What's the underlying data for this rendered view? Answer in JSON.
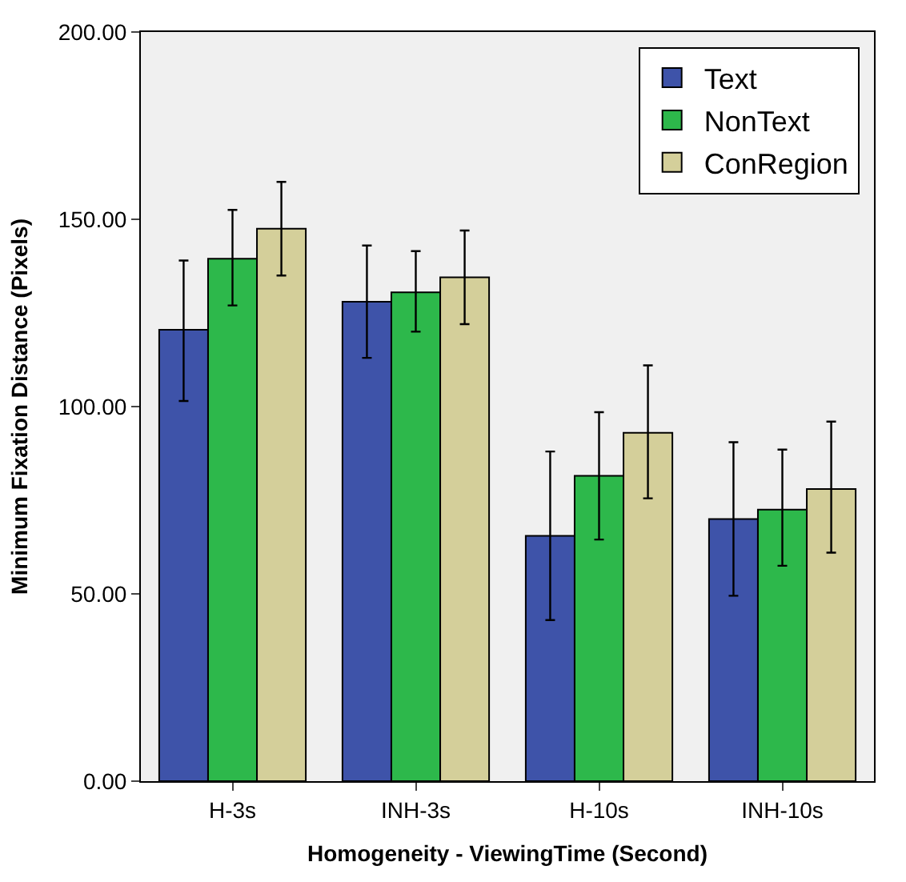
{
  "chart_data": {
    "type": "bar",
    "xlabel": "Homogeneity - ViewingTime (Second)",
    "ylabel": "Minimum Fixation Distance (Pixels)",
    "categories": [
      "H-3s",
      "INH-3s",
      "H-10s",
      "INH-10s"
    ],
    "series": [
      {
        "name": "Text",
        "color": "#3e53a9",
        "values": [
          120.5,
          128,
          65.5,
          70
        ],
        "errors": [
          [
            101.5,
            139
          ],
          [
            113,
            143
          ],
          [
            43,
            88
          ],
          [
            49.5,
            90.5
          ]
        ]
      },
      {
        "name": "NonText",
        "color": "#2db84b",
        "values": [
          139.5,
          130.5,
          81.5,
          72.5
        ],
        "errors": [
          [
            127,
            152.5
          ],
          [
            120,
            141.5
          ],
          [
            64.5,
            98.5
          ],
          [
            57.5,
            88.5
          ]
        ]
      },
      {
        "name": "ConRegion",
        "color": "#d4cf9a",
        "values": [
          147.5,
          134.5,
          93,
          78
        ],
        "errors": [
          [
            135,
            160
          ],
          [
            122,
            147
          ],
          [
            75.5,
            111
          ],
          [
            61,
            96
          ]
        ]
      }
    ],
    "ylim": [
      0,
      200
    ],
    "yticks": [
      {
        "value": 0,
        "label": "0.00"
      },
      {
        "value": 50,
        "label": "50.00"
      },
      {
        "value": 100,
        "label": "100.00"
      },
      {
        "value": 150,
        "label": "150.00"
      },
      {
        "value": 200,
        "label": "200.00"
      }
    ],
    "grid": false,
    "legend": "top right"
  }
}
